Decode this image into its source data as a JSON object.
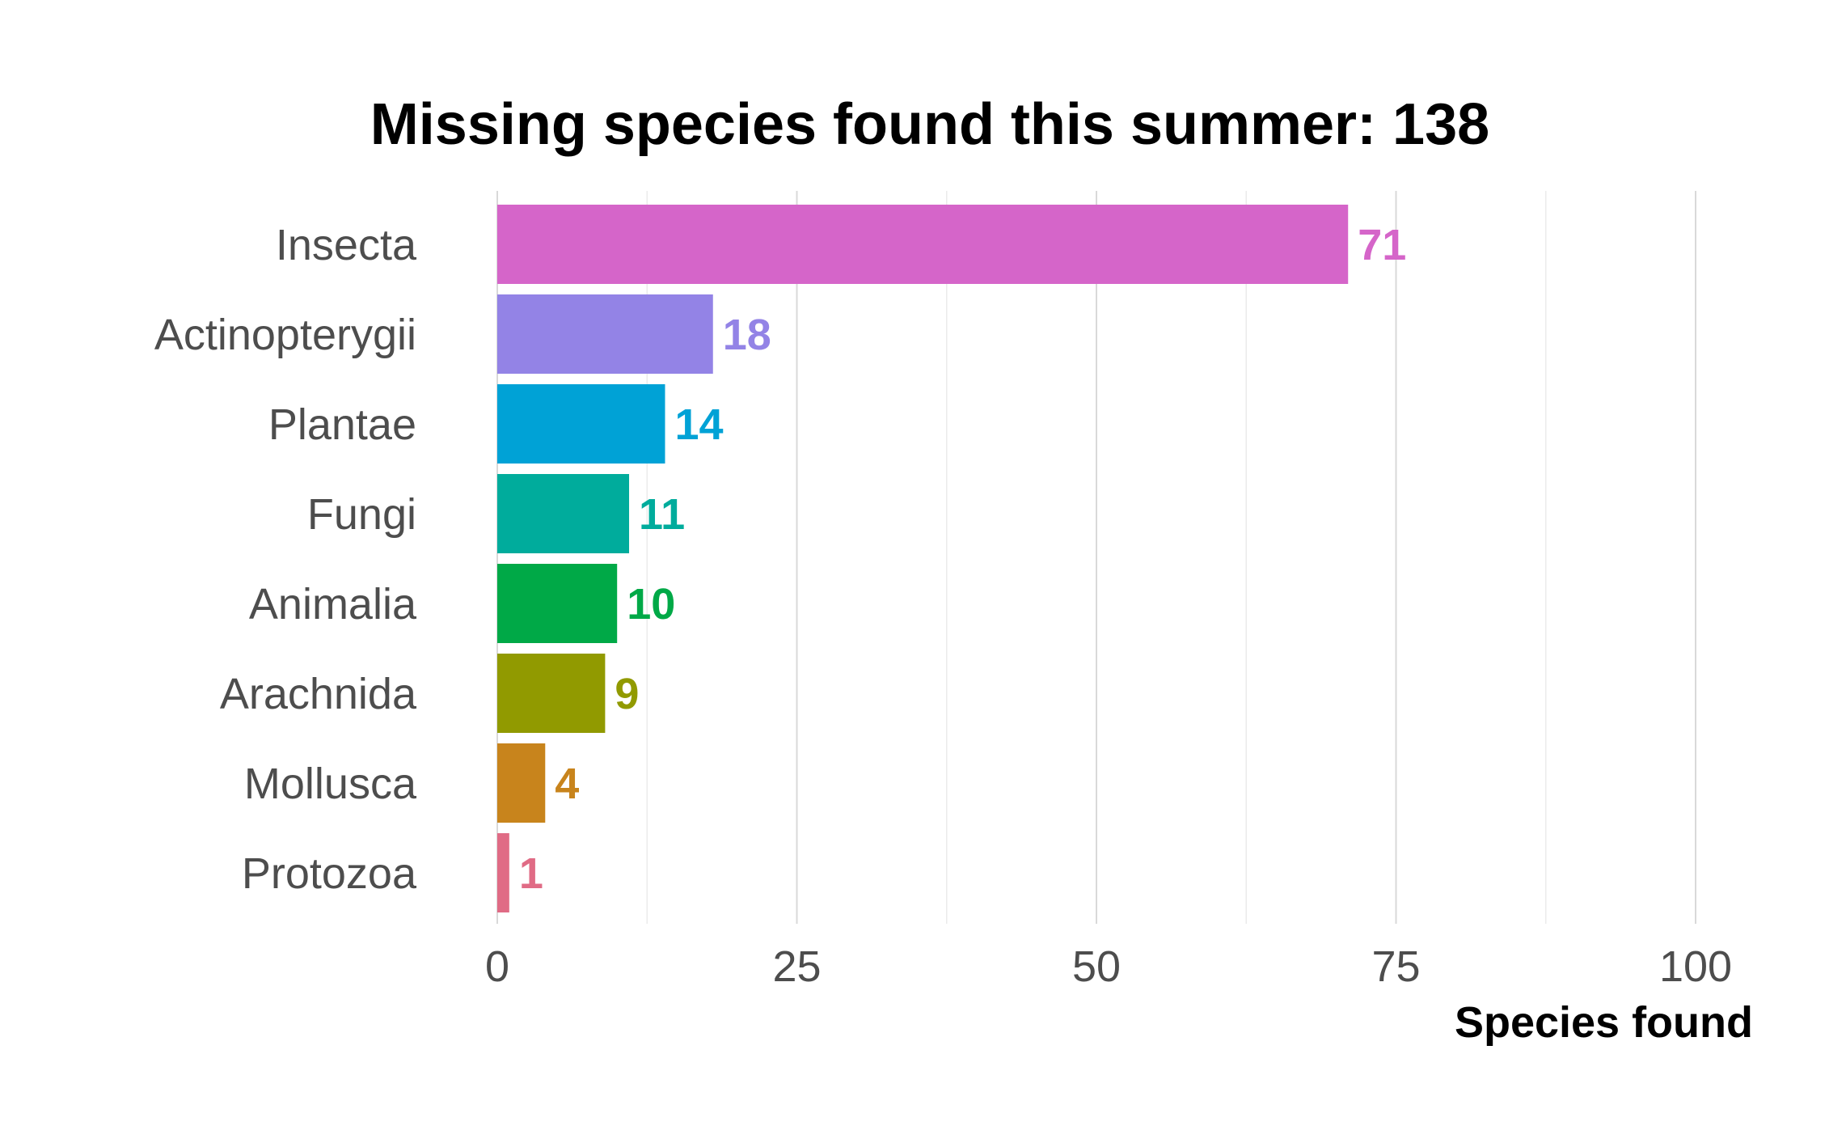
{
  "chart_data": {
    "type": "bar",
    "orientation": "horizontal",
    "title": "Missing species found this summer: 138",
    "xlabel": "Species found",
    "ylabel": "",
    "xlim": [
      0,
      100
    ],
    "x_ticks": [
      0,
      25,
      50,
      75,
      100
    ],
    "x_tick_labels": [
      "0",
      "25",
      "50",
      "75",
      "100"
    ],
    "grid": true,
    "legend": "none",
    "categories": [
      "Insecta",
      "Actinopterygii",
      "Plantae",
      "Fungi",
      "Animalia",
      "Arachnida",
      "Mollusca",
      "Protozoa"
    ],
    "values": [
      71,
      18,
      14,
      11,
      10,
      9,
      4,
      1
    ],
    "value_labels": [
      "71",
      "18",
      "14",
      "11",
      "10",
      "9",
      "4",
      "1"
    ],
    "colors": [
      "#D565C9",
      "#9383E6",
      "#00A2D6",
      "#00AC9C",
      "#00A947",
      "#919A00",
      "#C8841C",
      "#E06B85"
    ]
  }
}
